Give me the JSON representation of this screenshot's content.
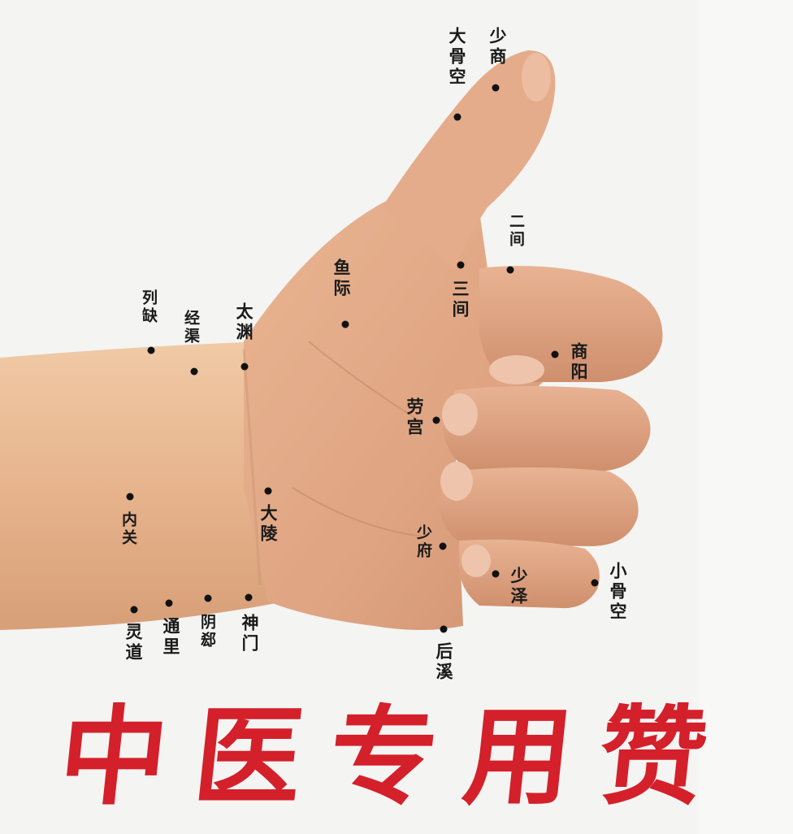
{
  "banner": {
    "text": "中医专用赞",
    "color": "#d4202a"
  },
  "points": [
    {
      "id": "shaoshang",
      "label": "少商"
    },
    {
      "id": "dagukong",
      "label": "大骨空"
    },
    {
      "id": "erjian",
      "label": "二间"
    },
    {
      "id": "sanjian",
      "label": "三间"
    },
    {
      "id": "yuji",
      "label": "鱼际"
    },
    {
      "id": "shangyang",
      "label": "商阳"
    },
    {
      "id": "lieque",
      "label": "列缺"
    },
    {
      "id": "jingqu",
      "label": "经渠"
    },
    {
      "id": "taiyuan",
      "label": "太渊"
    },
    {
      "id": "laogong",
      "label": "劳宫"
    },
    {
      "id": "neiguan",
      "label": "内关"
    },
    {
      "id": "daling",
      "label": "大陵"
    },
    {
      "id": "shaofu",
      "label": "少府"
    },
    {
      "id": "shaoze",
      "label": "少泽"
    },
    {
      "id": "xiaogukong",
      "label": "小骨空"
    },
    {
      "id": "lingdao",
      "label": "灵道"
    },
    {
      "id": "tongli",
      "label": "通里"
    },
    {
      "id": "yinxi",
      "label": "阴郄"
    },
    {
      "id": "shenmen",
      "label": "神门"
    },
    {
      "id": "houxi",
      "label": "后溪"
    }
  ]
}
